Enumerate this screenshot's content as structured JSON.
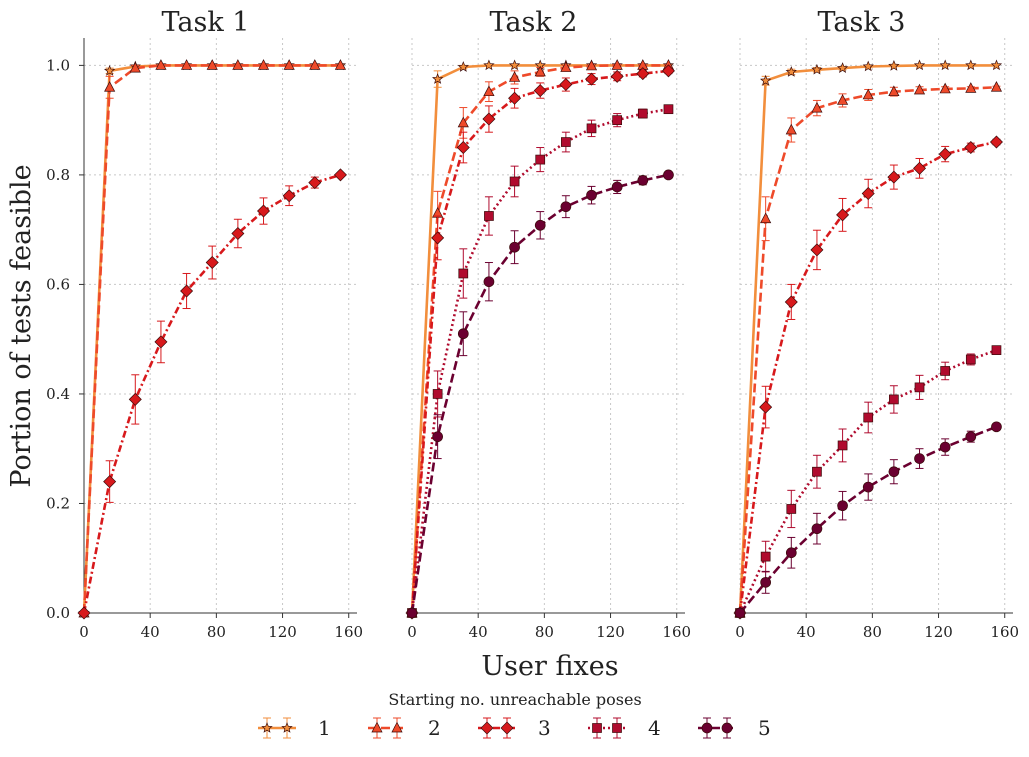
{
  "figure": {
    "ylabel": "Portion of tests feasible",
    "xlabel": "User fixes",
    "legend_title": "Starting no. unreachable poses",
    "legend_position": "bottom-center",
    "grid": "dotted",
    "colors": [
      "#f28e3c",
      "#ee4a2a",
      "#d7191c",
      "#b00b2e",
      "#6b0030"
    ]
  },
  "chart_data": [
    {
      "type": "line",
      "title": "Task 1",
      "xlim": [
        0,
        165
      ],
      "ylim": [
        0,
        1.05
      ],
      "xticks": [
        0,
        40,
        80,
        120,
        160
      ],
      "yticks": [
        0.0,
        0.2,
        0.4,
        0.6,
        0.8,
        1.0
      ],
      "x": [
        0,
        15.5,
        31,
        46.5,
        62,
        77.5,
        93,
        108.5,
        124,
        139.5,
        155
      ],
      "series": [
        {
          "name": "1",
          "marker": "star",
          "dash": "solid",
          "values": [
            0,
            0.99,
            0.998,
            1.0,
            1.0,
            1.0,
            1.0,
            1.0,
            1.0,
            1.0,
            1.0
          ],
          "errors": [
            0,
            0.005,
            0.002,
            0,
            0,
            0,
            0,
            0,
            0,
            0,
            0
          ]
        },
        {
          "name": "2",
          "marker": "triangle",
          "dash": "dashed",
          "values": [
            0,
            0.96,
            0.995,
            1.0,
            1.0,
            1.0,
            1.0,
            1.0,
            1.0,
            1.0,
            1.0
          ],
          "errors": [
            0,
            0.02,
            0.005,
            0,
            0,
            0,
            0,
            0,
            0,
            0,
            0
          ]
        },
        {
          "name": "3",
          "marker": "diamond",
          "dash": "dashdot",
          "values": [
            0,
            0.24,
            0.39,
            0.495,
            0.588,
            0.64,
            0.693,
            0.734,
            0.762,
            0.786,
            0.8
          ],
          "errors": [
            0,
            0.038,
            0.045,
            0.038,
            0.032,
            0.03,
            0.026,
            0.024,
            0.018,
            0.01,
            0
          ]
        }
      ]
    },
    {
      "type": "line",
      "title": "Task 2",
      "xlim": [
        0,
        165
      ],
      "ylim": [
        0,
        1.05
      ],
      "xticks": [
        0,
        40,
        80,
        120,
        160
      ],
      "yticks": [
        0.0,
        0.2,
        0.4,
        0.6,
        0.8,
        1.0
      ],
      "x": [
        0,
        15.5,
        31,
        46.5,
        62,
        77.5,
        93,
        108.5,
        124,
        139.5,
        155
      ],
      "series": [
        {
          "name": "1",
          "marker": "star",
          "dash": "solid",
          "values": [
            0,
            0.975,
            0.997,
            1.0,
            1.0,
            1.0,
            1.0,
            1.0,
            1.0,
            1.0,
            1.0
          ],
          "errors": [
            0,
            0.015,
            0.003,
            0,
            0,
            0,
            0,
            0,
            0,
            0,
            0
          ]
        },
        {
          "name": "2",
          "marker": "triangle",
          "dash": "dashed",
          "values": [
            0,
            0.73,
            0.895,
            0.952,
            0.978,
            0.988,
            0.996,
            0.999,
            1.0,
            1.0,
            1.0
          ],
          "errors": [
            0,
            0.04,
            0.028,
            0.018,
            0.012,
            0.008,
            0.004,
            0.002,
            0,
            0,
            0
          ]
        },
        {
          "name": "3",
          "marker": "diamond",
          "dash": "dashdot",
          "values": [
            0,
            0.685,
            0.85,
            0.902,
            0.94,
            0.954,
            0.965,
            0.975,
            0.98,
            0.985,
            0.99
          ],
          "errors": [
            0,
            0.04,
            0.028,
            0.024,
            0.018,
            0.014,
            0.012,
            0.01,
            0.008,
            0.006,
            0.005
          ]
        },
        {
          "name": "4",
          "marker": "square",
          "dash": "dotted",
          "values": [
            0,
            0.4,
            0.62,
            0.725,
            0.788,
            0.828,
            0.86,
            0.885,
            0.9,
            0.912,
            0.92
          ],
          "errors": [
            0,
            0.042,
            0.045,
            0.035,
            0.028,
            0.022,
            0.018,
            0.015,
            0.012,
            0.008,
            0.005
          ]
        },
        {
          "name": "5",
          "marker": "circle",
          "dash": "dashed",
          "values": [
            0,
            0.322,
            0.51,
            0.605,
            0.668,
            0.708,
            0.742,
            0.763,
            0.778,
            0.79,
            0.8
          ],
          "errors": [
            0,
            0.04,
            0.04,
            0.035,
            0.03,
            0.025,
            0.02,
            0.016,
            0.012,
            0.008,
            0.005
          ]
        }
      ]
    },
    {
      "type": "line",
      "title": "Task 3",
      "xlim": [
        0,
        165
      ],
      "ylim": [
        0,
        1.05
      ],
      "xticks": [
        0,
        40,
        80,
        120,
        160
      ],
      "yticks": [
        0.0,
        0.2,
        0.4,
        0.6,
        0.8,
        1.0
      ],
      "x": [
        0,
        15.5,
        31,
        46.5,
        62,
        77.5,
        93,
        108.5,
        124,
        139.5,
        155
      ],
      "series": [
        {
          "name": "1",
          "marker": "star",
          "dash": "solid",
          "values": [
            0,
            0.972,
            0.988,
            0.992,
            0.995,
            0.998,
            0.999,
            1.0,
            1.0,
            1.0,
            1.0
          ],
          "errors": [
            0,
            0.008,
            0.005,
            0.004,
            0.003,
            0.002,
            0.001,
            0,
            0,
            0,
            0
          ]
        },
        {
          "name": "2",
          "marker": "triangle",
          "dash": "dashed",
          "values": [
            0,
            0.72,
            0.882,
            0.922,
            0.936,
            0.946,
            0.952,
            0.955,
            0.957,
            0.958,
            0.96
          ],
          "errors": [
            0,
            0.04,
            0.022,
            0.014,
            0.012,
            0.01,
            0.008,
            0.006,
            0.004,
            0.003,
            0.002
          ]
        },
        {
          "name": "3",
          "marker": "diamond",
          "dash": "dashdot",
          "values": [
            0,
            0.376,
            0.568,
            0.663,
            0.727,
            0.766,
            0.796,
            0.812,
            0.838,
            0.85,
            0.86
          ],
          "errors": [
            0,
            0.038,
            0.032,
            0.036,
            0.03,
            0.026,
            0.022,
            0.018,
            0.014,
            0.008,
            0.005
          ]
        },
        {
          "name": "4",
          "marker": "square",
          "dash": "dotted",
          "values": [
            0,
            0.103,
            0.19,
            0.258,
            0.306,
            0.357,
            0.39,
            0.412,
            0.442,
            0.463,
            0.48
          ],
          "errors": [
            0,
            0.028,
            0.034,
            0.03,
            0.03,
            0.028,
            0.025,
            0.022,
            0.016,
            0.01,
            0.005
          ]
        },
        {
          "name": "5",
          "marker": "circle",
          "dash": "dashed",
          "values": [
            0,
            0.056,
            0.11,
            0.154,
            0.196,
            0.23,
            0.258,
            0.282,
            0.303,
            0.322,
            0.34
          ],
          "errors": [
            0,
            0.02,
            0.028,
            0.028,
            0.026,
            0.024,
            0.022,
            0.018,
            0.015,
            0.01,
            0.005
          ]
        }
      ]
    }
  ]
}
